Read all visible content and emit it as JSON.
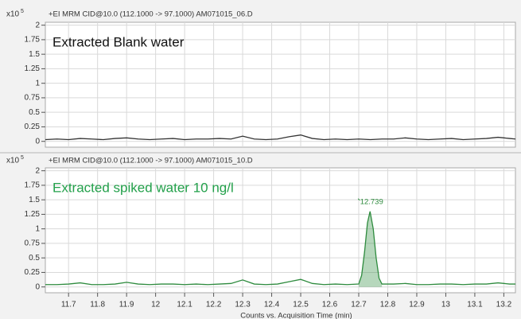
{
  "chart_data": [
    {
      "type": "line",
      "y_scale": "x10",
      "y_scale_power": "5",
      "title": "+EI MRM CID@10.0 (112.1000 -> 97.1000) AM071015_06.D",
      "annotation": "Extracted Blank water",
      "annotation_color": "#111111",
      "ylim": [
        -0.1,
        2.05
      ],
      "yticks": [
        0,
        0.25,
        0.5,
        0.75,
        1,
        1.25,
        1.5,
        1.75,
        2
      ],
      "xlim": [
        11.62,
        13.24
      ],
      "grid": true,
      "x": [
        11.62,
        11.66,
        11.7,
        11.74,
        11.78,
        11.82,
        11.86,
        11.9,
        11.94,
        11.98,
        12.02,
        12.06,
        12.1,
        12.14,
        12.18,
        12.22,
        12.26,
        12.3,
        12.34,
        12.38,
        12.42,
        12.46,
        12.5,
        12.54,
        12.58,
        12.62,
        12.66,
        12.7,
        12.74,
        12.78,
        12.82,
        12.86,
        12.9,
        12.94,
        12.98,
        13.02,
        13.06,
        13.1,
        13.14,
        13.18,
        13.22,
        13.24
      ],
      "series": [
        {
          "color": "#333333",
          "values": [
            0.03,
            0.04,
            0.03,
            0.05,
            0.04,
            0.03,
            0.05,
            0.06,
            0.04,
            0.03,
            0.04,
            0.05,
            0.03,
            0.04,
            0.04,
            0.05,
            0.04,
            0.09,
            0.04,
            0.03,
            0.04,
            0.08,
            0.11,
            0.05,
            0.03,
            0.04,
            0.03,
            0.04,
            0.03,
            0.04,
            0.04,
            0.06,
            0.04,
            0.03,
            0.04,
            0.05,
            0.03,
            0.04,
            0.05,
            0.07,
            0.05,
            0.04
          ]
        }
      ]
    },
    {
      "type": "line",
      "y_scale": "x10",
      "y_scale_power": "5",
      "title": "+EI MRM CID@10.0 (112.1000 -> 97.1000) AM071015_10.D",
      "annotation": "Extracted spiked water 10 ng/l",
      "annotation_color": "#22a04a",
      "x_label": "Counts vs. Acquisition Time (min)",
      "ylim": [
        -0.1,
        2.05
      ],
      "yticks": [
        0,
        0.25,
        0.5,
        0.75,
        1,
        1.25,
        1.5,
        1.75,
        2
      ],
      "xlim": [
        11.62,
        13.24
      ],
      "xticks": [
        11.7,
        11.8,
        11.9,
        12,
        12.1,
        12.2,
        12.3,
        12.4,
        12.5,
        12.6,
        12.7,
        12.8,
        12.9,
        13,
        13.1,
        13.2
      ],
      "grid": true,
      "peak": {
        "label": "12.739",
        "x": 12.739,
        "shaded_range": [
          12.7,
          12.78
        ]
      },
      "x": [
        11.62,
        11.66,
        11.7,
        11.74,
        11.78,
        11.82,
        11.86,
        11.9,
        11.94,
        11.98,
        12.02,
        12.06,
        12.1,
        12.14,
        12.18,
        12.22,
        12.26,
        12.3,
        12.34,
        12.38,
        12.42,
        12.46,
        12.5,
        12.54,
        12.58,
        12.62,
        12.66,
        12.7,
        12.71,
        12.72,
        12.73,
        12.739,
        12.75,
        12.76,
        12.77,
        12.78,
        12.82,
        12.86,
        12.9,
        12.94,
        12.98,
        13.02,
        13.06,
        13.1,
        13.14,
        13.18,
        13.22,
        13.24
      ],
      "series": [
        {
          "color": "#2e8b3e",
          "values": [
            0.04,
            0.04,
            0.05,
            0.07,
            0.04,
            0.04,
            0.05,
            0.08,
            0.05,
            0.04,
            0.05,
            0.05,
            0.04,
            0.05,
            0.04,
            0.05,
            0.06,
            0.12,
            0.05,
            0.04,
            0.05,
            0.09,
            0.13,
            0.06,
            0.04,
            0.05,
            0.04,
            0.05,
            0.2,
            0.6,
            1.1,
            1.3,
            1.0,
            0.5,
            0.15,
            0.05,
            0.05,
            0.06,
            0.04,
            0.04,
            0.05,
            0.05,
            0.04,
            0.05,
            0.05,
            0.07,
            0.05,
            0.05
          ]
        }
      ]
    }
  ]
}
